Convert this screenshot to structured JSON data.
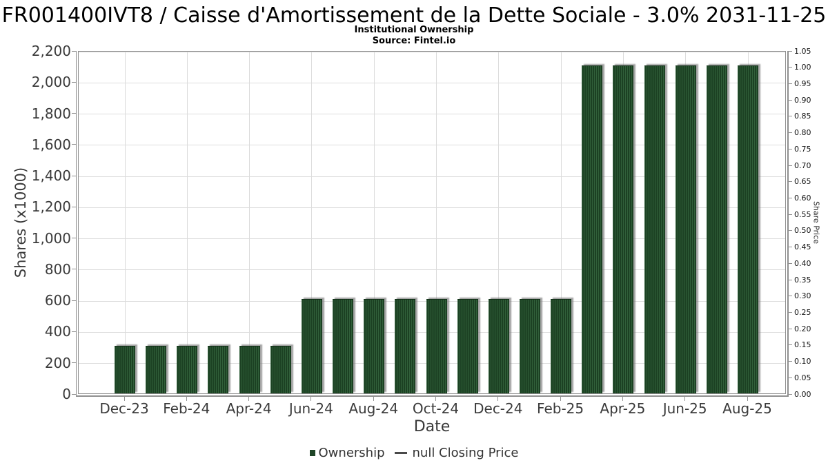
{
  "header": {
    "title": "FR001400IVT8 / Caisse d'Amortissement de la Dette Sociale - 3.0% 2031-11-25",
    "subtitle": "Institutional Ownership",
    "source": "Source: Fintel.io"
  },
  "legend": {
    "ownership_label": "Ownership",
    "price_label": "null Closing Price"
  },
  "chart_data": {
    "type": "bar",
    "title": "FR001400IVT8 / Caisse d'Amortissement de la Dette Sociale - 3.0% 2031-11-25",
    "subtitle": "Institutional Ownership",
    "source": "Source: Fintel.io",
    "xlabel": "Date",
    "ylabel_left": "Shares (x1000)",
    "ylabel_right": "Share Price",
    "categories": [
      "Dec-23",
      "Jan-24",
      "Feb-24",
      "Mar-24",
      "Apr-24",
      "May-24",
      "Jun-24",
      "Jul-24",
      "Aug-24",
      "Sep-24",
      "Oct-24",
      "Nov-24",
      "Dec-24",
      "Jan-25",
      "Feb-25",
      "Mar-25",
      "Apr-25",
      "May-25",
      "Jun-25",
      "Jul-25",
      "Aug-25"
    ],
    "series": [
      {
        "name": "Ownership",
        "values": [
          300,
          300,
          300,
          300,
          300,
          300,
          600,
          600,
          600,
          600,
          600,
          600,
          600,
          600,
          600,
          2100,
          2100,
          2100,
          2100,
          2100,
          2100
        ]
      },
      {
        "name": "null Closing Price",
        "values": []
      }
    ],
    "x_tick_labels": [
      "Dec-23",
      "Feb-24",
      "Apr-24",
      "Jun-24",
      "Aug-24",
      "Oct-24",
      "Dec-24",
      "Feb-25",
      "Apr-25",
      "Jun-25",
      "Aug-25"
    ],
    "ylim_left": [
      0,
      2200
    ],
    "ytick_step_left": 200,
    "ylim_right": [
      0,
      1.05
    ],
    "ytick_step_right": 0.05,
    "grid": true,
    "legend_position": "bottom",
    "bar_color": "#1c4123",
    "bar_stripe_color": "#31603a"
  }
}
